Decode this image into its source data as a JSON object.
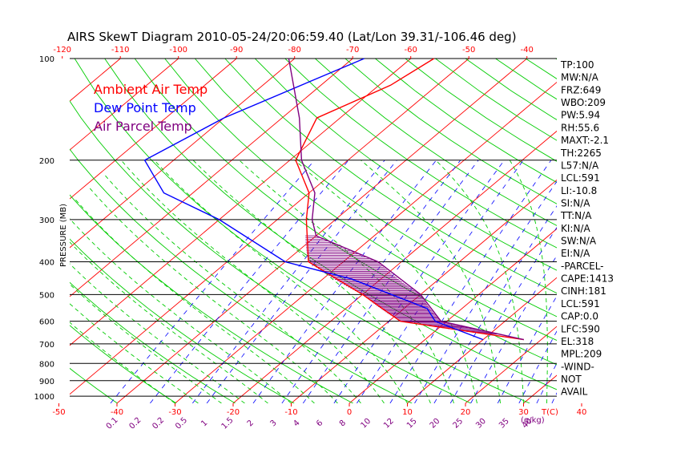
{
  "chart_data": {
    "type": "line",
    "title": "AIRS SkewT Diagram 2010-05-24/20:06:59.40 (Lat/Lon 39.31/-106.46 deg)",
    "ylabel": "PRESSURE (MB)",
    "xlabel_bottom_unit": "T(C)",
    "mixing_ratio_unit": "(g/kg)",
    "pressure_levels": [
      100,
      200,
      300,
      400,
      500,
      600,
      700,
      800,
      900,
      1000
    ],
    "pressure_tick_labels": [
      "100",
      "200",
      "300",
      "400",
      "500",
      "600",
      "700",
      "800",
      "900",
      "1000"
    ],
    "bottom_temp_ticks": [
      -50,
      -40,
      -30,
      -20,
      -10,
      0,
      10,
      20,
      30,
      40
    ],
    "bottom_temp_labels": [
      "-50",
      "-40",
      "-30",
      "-20",
      "-10",
      "0",
      "10",
      "20",
      "30",
      "40"
    ],
    "top_temp_ticks": [
      -120,
      -110,
      -100,
      -90,
      -80,
      -70,
      -60,
      -50,
      -40
    ],
    "top_temp_labels": [
      "-120",
      "-110",
      "-100",
      "-90",
      "-80",
      "-70",
      "-60",
      "-50",
      "-40"
    ],
    "mixing_ratio_labels": [
      "0.1",
      "0.2",
      "0.2",
      "0.5",
      "1",
      "1.5",
      "2",
      "3",
      "4",
      "6",
      "8",
      "10",
      "12",
      "15",
      "20",
      "25",
      "30",
      "35",
      "40"
    ],
    "legend": [
      {
        "label": "Ambient Air Temp",
        "color": "#ff0000"
      },
      {
        "label": "Dew Point Temp",
        "color": "#0000ff"
      },
      {
        "label": "Air Parcel Temp",
        "color": "#800080"
      }
    ],
    "series": [
      {
        "name": "Ambient Air Temp",
        "color": "#ff0000",
        "points": [
          [
            100,
            -56
          ],
          [
            120,
            -58
          ],
          [
            150,
            -64
          ],
          [
            200,
            -59
          ],
          [
            250,
            -50
          ],
          [
            300,
            -45
          ],
          [
            400,
            -36
          ],
          [
            500,
            -20
          ],
          [
            600,
            -8
          ],
          [
            680,
            17
          ]
        ]
      },
      {
        "name": "Dew Point Temp",
        "color": "#0000ff",
        "points": [
          [
            100,
            -68
          ],
          [
            150,
            -80
          ],
          [
            200,
            -85
          ],
          [
            250,
            -75
          ],
          [
            300,
            -60
          ],
          [
            400,
            -40
          ],
          [
            450,
            -25
          ],
          [
            500,
            -15
          ],
          [
            550,
            -6
          ],
          [
            600,
            -2
          ],
          [
            680,
            10
          ]
        ]
      },
      {
        "name": "Air Parcel Temp",
        "color": "#800080",
        "points": [
          [
            100,
            -81
          ],
          [
            150,
            -67
          ],
          [
            200,
            -58
          ],
          [
            250,
            -49
          ],
          [
            300,
            -44
          ],
          [
            335,
            -40
          ],
          [
            400,
            -24
          ],
          [
            500,
            -10
          ],
          [
            600,
            -1
          ],
          [
            680,
            17
          ]
        ]
      }
    ],
    "cape_hatch_range_mb": [
      335,
      655
    ],
    "grid": {
      "isobars": true,
      "isotherms": true,
      "dry_adiabats": true,
      "moist_adiabats": true,
      "mixing_ratio_lines": true
    },
    "colors": {
      "isotherm": "#ff0000",
      "dry_adiabat": "#00cc00",
      "moist_adiabat": "#00cc00",
      "mixing_ratio": "#0000ff",
      "hatch": "#800080"
    }
  },
  "indices": [
    "TP:100",
    "MW:N/A",
    "FRZ:649",
    "WBO:209",
    "PW:5.94",
    "RH:55.6",
    "MAXT:-2.1",
    "TH:2265",
    "L57:N/A",
    "LCL:591",
    "LI:-10.8",
    "SI:N/A",
    "TT:N/A",
    "KI:N/A",
    "SW:N/A",
    "EI:N/A",
    "-PARCEL-",
    "CAPE:1413",
    "CINH:181",
    "LCL:591",
    "CAP:0.0",
    "LFC:590",
    "EL:318",
    "MPL:209",
    "-WIND-",
    "NOT",
    "AVAIL"
  ]
}
